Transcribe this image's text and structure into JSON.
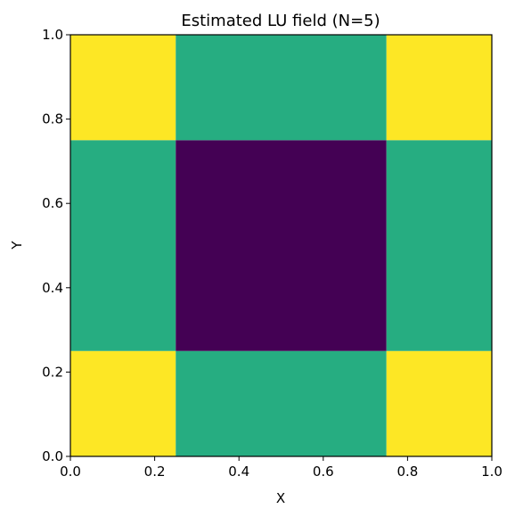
{
  "chart_data": {
    "type": "heatmap",
    "title": "Estimated LU field (N=5)",
    "xlabel": "X",
    "ylabel": "Y",
    "xlim": [
      0.0,
      1.0
    ],
    "ylim": [
      0.0,
      1.0
    ],
    "grid": false,
    "legend": "none",
    "x_edges": [
      0.0,
      0.25,
      0.75,
      1.0
    ],
    "y_edges": [
      0.0,
      0.25,
      0.75,
      1.0
    ],
    "cells_bottom_to_top": [
      [
        2,
        1,
        2
      ],
      [
        1,
        0,
        1
      ],
      [
        2,
        1,
        2
      ]
    ],
    "colormap": {
      "0": "#440154",
      "1": "#26ad81",
      "2": "#fde725"
    },
    "x_ticks": [
      {
        "value": 0.0,
        "label": "0.0"
      },
      {
        "value": 0.2,
        "label": "0.2"
      },
      {
        "value": 0.4,
        "label": "0.4"
      },
      {
        "value": 0.6,
        "label": "0.6"
      },
      {
        "value": 0.8,
        "label": "0.8"
      },
      {
        "value": 1.0,
        "label": "1.0"
      }
    ],
    "y_ticks": [
      {
        "value": 0.0,
        "label": "0.0"
      },
      {
        "value": 0.2,
        "label": "0.2"
      },
      {
        "value": 0.4,
        "label": "0.4"
      },
      {
        "value": 0.6,
        "label": "0.6"
      },
      {
        "value": 0.8,
        "label": "0.8"
      },
      {
        "value": 1.0,
        "label": "1.0"
      }
    ]
  }
}
